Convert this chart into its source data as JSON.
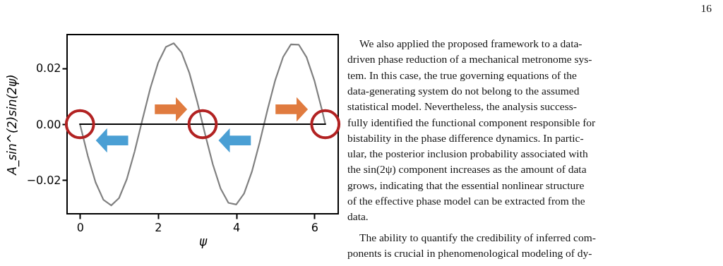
{
  "chart_data": {
    "type": "line",
    "xlabel": "ψ",
    "ylabel": "A_sin^(2)sin(2ψ)",
    "xlim": [
      -0.33,
      6.61
    ],
    "ylim": [
      -0.032,
      0.032
    ],
    "xticks": [
      0,
      2,
      4,
      6
    ],
    "yticks": [
      {
        "value": -0.02,
        "label": "−0.02"
      },
      {
        "value": 0,
        "label": "0.00"
      },
      {
        "value": 0.02,
        "label": "0.02"
      }
    ],
    "grid": false,
    "marker": "none",
    "line_style": "solid",
    "series": [
      {
        "type": "line",
        "color": "#808080",
        "x": [
          0,
          0.2,
          0.4,
          0.6,
          0.8,
          1.0,
          1.2,
          1.4,
          1.6,
          1.8,
          2.0,
          2.2,
          2.4,
          2.6,
          2.8,
          3.0,
          3.2,
          3.4,
          3.6,
          3.8,
          4.0,
          4.2,
          4.4,
          4.6,
          4.8,
          5.0,
          5.2,
          5.4,
          5.6,
          5.8,
          6.0,
          6.2,
          6.28
        ],
        "values": [
          0,
          -0.0113,
          -0.0208,
          -0.027,
          -0.029,
          -0.0264,
          -0.0196,
          -0.0097,
          0.0017,
          0.0128,
          0.0219,
          0.0276,
          0.0289,
          0.0256,
          0.0183,
          0.0081,
          -0.0034,
          -0.0143,
          -0.023,
          -0.0281,
          -0.0287,
          -0.0248,
          -0.017,
          -0.0065,
          0.0051,
          0.0158,
          0.024,
          0.0285,
          0.0284,
          0.0239,
          0.0156,
          0.0048,
          0
        ]
      },
      {
        "type": "line",
        "color": "#000000",
        "x": [
          0,
          6.28
        ],
        "values": [
          0,
          0
        ]
      },
      {
        "type": "scatter",
        "marker": "circle",
        "color": "#b22222",
        "x": [
          0,
          3.14,
          6.28
        ],
        "values": [
          0,
          0,
          0
        ]
      }
    ],
    "annotations": [
      "16",
      "We also applied the proposed framework to a data-",
      "driven phase reduction of a mechanical metronome sys-",
      "tem.  In this case, the true governing equations of the",
      "data-generating system do not belong to the assumed",
      "statistical model.  Nevertheless, the analysis success-",
      "fully identified the functional component responsible for",
      "bistability in the phase difference dynamics.  In partic-",
      "ular, the posterior inclusion probability associated with",
      "the sin(2ψ) component increases as the amount of data",
      "grows, indicating that the essential nonlinear structure",
      "of the effective phase model can be extracted from the",
      "data.",
      "The ability to quantify the credibility of inferred com-",
      "ponents is crucial in phenomenological modeling of dy-"
    ]
  }
}
